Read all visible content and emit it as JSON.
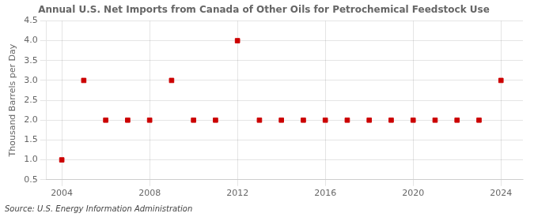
{
  "chart_data": {
    "type": "scatter",
    "title": "Annual U.S. Net Imports from Canada of Other Oils for Petrochemical Feedstock Use",
    "ylabel": "Thousand Barrels per Day",
    "annotations": [
      "Source: U.S. Energy Information Administration"
    ],
    "x": [
      2004,
      2005,
      2006,
      2007,
      2008,
      2009,
      2010,
      2011,
      2012,
      2013,
      2014,
      2015,
      2016,
      2017,
      2018,
      2019,
      2020,
      2021,
      2022,
      2023,
      2024
    ],
    "values": [
      1.0,
      3.0,
      2.0,
      2.0,
      2.0,
      3.0,
      2.0,
      2.0,
      4.0,
      2.0,
      2.0,
      2.0,
      2.0,
      2.0,
      2.0,
      2.0,
      2.0,
      2.0,
      2.0,
      2.0,
      3.0
    ],
    "color": "#cc0000",
    "marker": "square",
    "ylim": [
      0.5,
      4.5
    ],
    "yticks": [
      0.5,
      {
        "value": 1.0,
        "label": "1.0"
      },
      1.5,
      {
        "value": 2.0,
        "label": "2.0"
      },
      2.5,
      {
        "value": 3.0,
        "label": "3.0"
      },
      3.5,
      {
        "value": 4.0,
        "label": "4.0"
      },
      4.5
    ],
    "xlim": [
      2003.3,
      2025.0
    ],
    "xticks": [
      2004,
      2008,
      2012,
      2016,
      2020,
      2024
    ],
    "grid": true
  }
}
